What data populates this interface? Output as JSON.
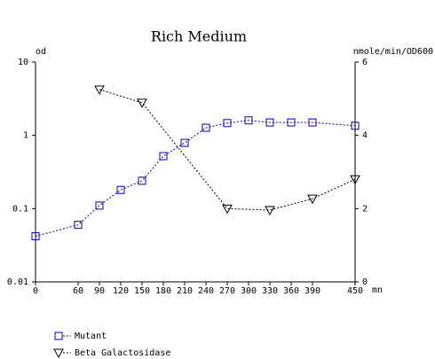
{
  "chart_data": {
    "type": "line",
    "title": "Rich Medium",
    "y_label": "od",
    "y2_label": "nmole/min/OD600",
    "x_label": "mn",
    "x": [
      0,
      60,
      90,
      120,
      150,
      180,
      210,
      240,
      270,
      300,
      330,
      360,
      390,
      450
    ],
    "xlim": [
      0,
      450
    ],
    "xticks": [
      0,
      60,
      90,
      120,
      150,
      180,
      210,
      240,
      270,
      300,
      330,
      360,
      390,
      450
    ],
    "ylim": [
      0.01,
      10
    ],
    "yticks": [
      0.01,
      0.1,
      1,
      10
    ],
    "ylog": true,
    "y2lim": [
      0,
      6
    ],
    "y2ticks": [
      0,
      2,
      4,
      6
    ],
    "series": [
      {
        "name": "Mutant",
        "color": "#0000cc",
        "marker": "square",
        "values": [
          0.042,
          0.06,
          0.11,
          0.18,
          0.24,
          0.52,
          0.79,
          1.27,
          1.47,
          1.6,
          1.5,
          1.5,
          1.5,
          1.35
        ]
      },
      {
        "name": "Beta Galactosidase",
        "color": "#000000",
        "marker": "triangle-down",
        "axis": "y2",
        "values": [
          null,
          null,
          5.25,
          null,
          4.89,
          null,
          null,
          null,
          2.0,
          null,
          1.96,
          null,
          2.27,
          2.8
        ]
      }
    ]
  }
}
